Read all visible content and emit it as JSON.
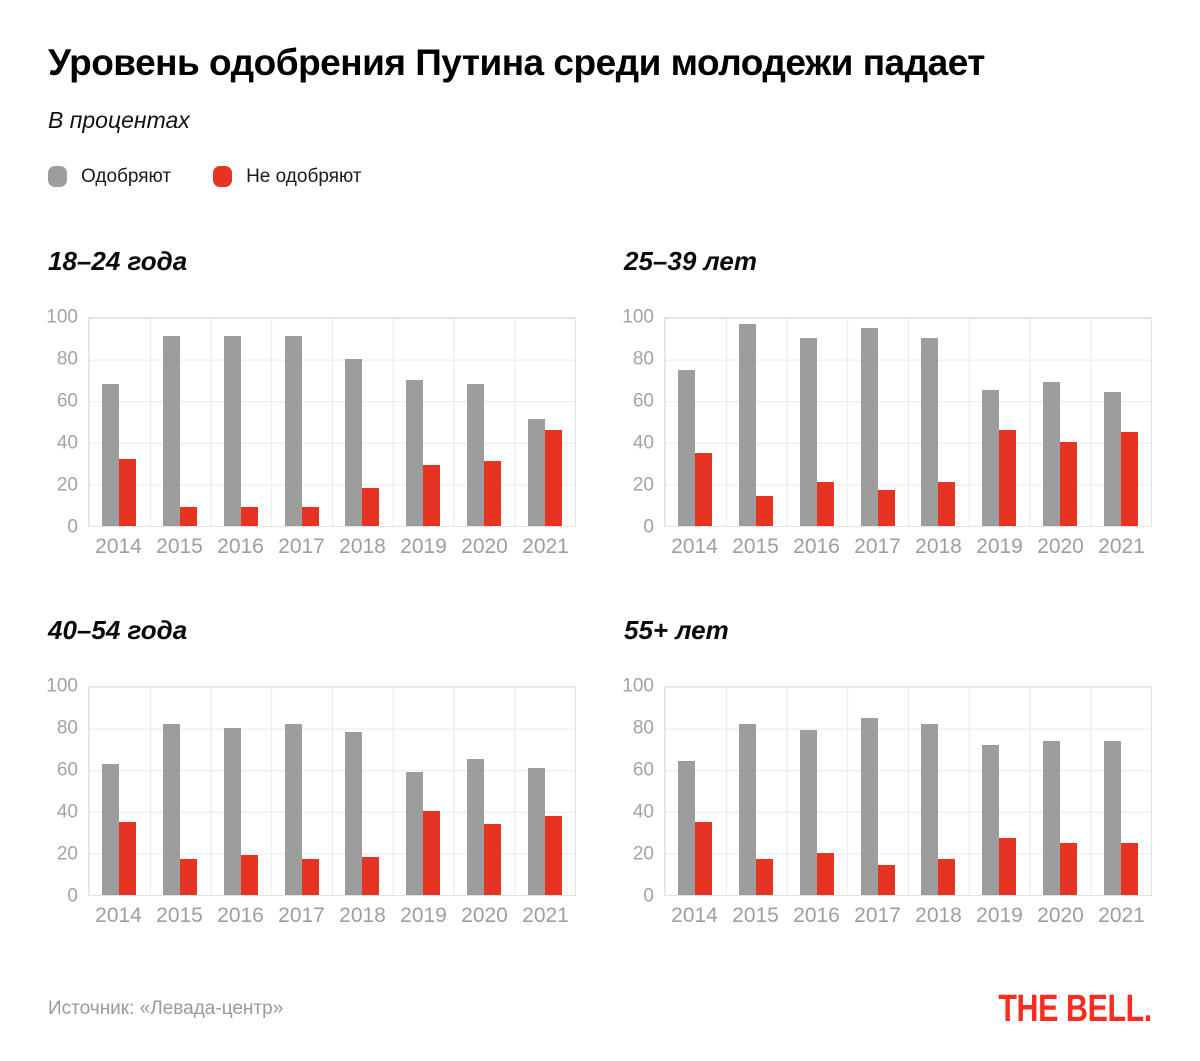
{
  "page": {
    "title": "Уровень одобрения Путина среди молодежи падает",
    "subtitle": "В процентах",
    "source": "Источник: «Левада-центр»",
    "logo": "THE BELL."
  },
  "colors": {
    "approve": "#9d9d9d",
    "disapprove": "#e73422",
    "logo_red": "#fa2b1f",
    "grid": "#e9e9e9",
    "axis_text": "#a3a3a3",
    "title_text": "#000000",
    "source_text": "#9a9a9a"
  },
  "legend": {
    "items": [
      {
        "label": "Одобряют",
        "color": "#9d9d9d"
      },
      {
        "label": "Не одобряют",
        "color": "#e73422"
      }
    ],
    "position": "top-left"
  },
  "chart_data": [
    {
      "type": "bar",
      "title": "18–24 года",
      "categories": [
        "2014",
        "2015",
        "2016",
        "2017",
        "2018",
        "2019",
        "2020",
        "2021"
      ],
      "series": [
        {
          "name": "Одобряют",
          "color": "#9d9d9d",
          "values": [
            68,
            91,
            91,
            91,
            80,
            70,
            68,
            51
          ]
        },
        {
          "name": "Не одобряют",
          "color": "#e73422",
          "values": [
            32,
            9,
            9,
            9,
            18,
            29,
            31,
            46
          ]
        }
      ],
      "ylim": [
        0,
        100
      ],
      "yticks": [
        100,
        80,
        60,
        40,
        20,
        0
      ],
      "grid": true
    },
    {
      "type": "bar",
      "title": "25–39 лет",
      "categories": [
        "2014",
        "2015",
        "2016",
        "2017",
        "2018",
        "2019",
        "2020",
        "2021"
      ],
      "series": [
        {
          "name": "Одобряют",
          "color": "#9d9d9d",
          "values": [
            75,
            97,
            90,
            95,
            90,
            65,
            69,
            64
          ]
        },
        {
          "name": "Не одобряют",
          "color": "#e73422",
          "values": [
            35,
            14,
            21,
            17,
            21,
            46,
            40,
            45
          ]
        }
      ],
      "ylim": [
        0,
        100
      ],
      "yticks": [
        100,
        80,
        60,
        40,
        20,
        0
      ],
      "grid": true
    },
    {
      "type": "bar",
      "title": "40–54 года",
      "categories": [
        "2014",
        "2015",
        "2016",
        "2017",
        "2018",
        "2019",
        "2020",
        "2021"
      ],
      "series": [
        {
          "name": "Одобряют",
          "color": "#9d9d9d",
          "values": [
            63,
            82,
            80,
            82,
            78,
            59,
            65,
            61
          ]
        },
        {
          "name": "Не одобряют",
          "color": "#e73422",
          "values": [
            35,
            17,
            19,
            17,
            18,
            40,
            34,
            38
          ]
        }
      ],
      "ylim": [
        0,
        100
      ],
      "yticks": [
        100,
        80,
        60,
        40,
        20,
        0
      ],
      "grid": true
    },
    {
      "type": "bar",
      "title": "55+ лет",
      "categories": [
        "2014",
        "2015",
        "2016",
        "2017",
        "2018",
        "2019",
        "2020",
        "2021"
      ],
      "series": [
        {
          "name": "Одобряют",
          "color": "#9d9d9d",
          "values": [
            64,
            82,
            79,
            85,
            82,
            72,
            74,
            74
          ]
        },
        {
          "name": "Не одобряют",
          "color": "#e73422",
          "values": [
            35,
            17,
            20,
            14,
            17,
            27,
            25,
            25
          ]
        }
      ],
      "ylim": [
        0,
        100
      ],
      "yticks": [
        100,
        80,
        60,
        40,
        20,
        0
      ],
      "grid": true
    }
  ]
}
